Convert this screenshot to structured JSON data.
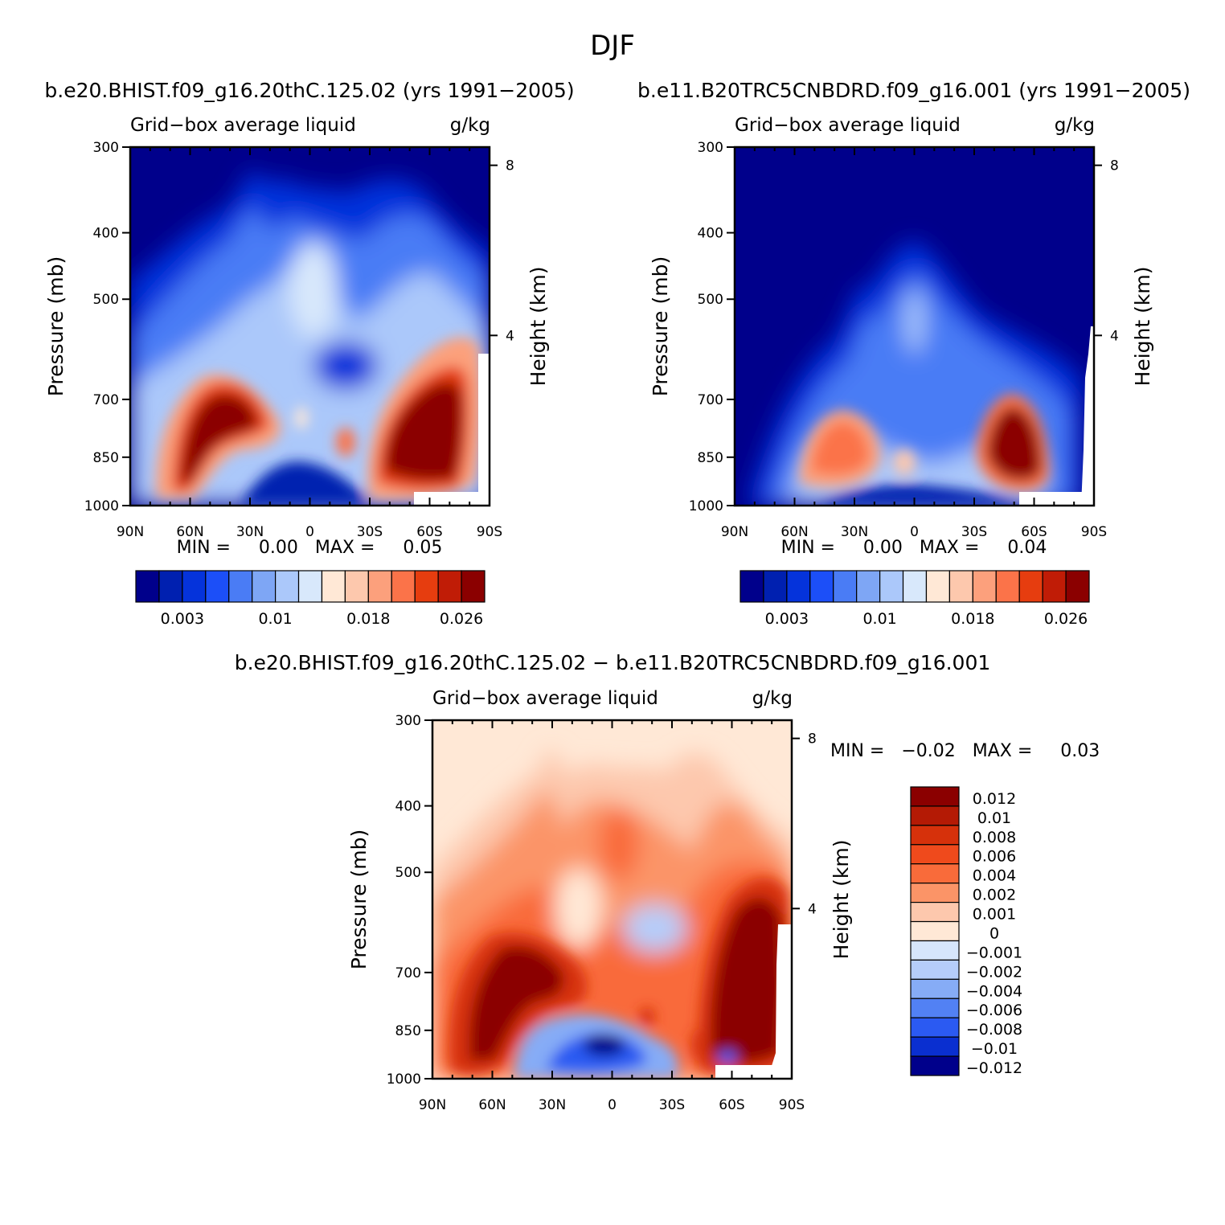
{
  "figure": {
    "title": "DJF"
  },
  "panels": [
    {
      "title": "b.e20.BHIST.f09_g16.20thC.125.02 (yrs 1991−2005)",
      "left_label": "Grid−box average liquid",
      "right_label": "g/kg",
      "min_max": "MIN =     0.00   MAX =     0.05"
    },
    {
      "title": "b.e11.B20TRC5CNBDRD.f09_g16.001 (yrs 1991−2005)",
      "left_label": "Grid−box average liquid",
      "right_label": "g/kg",
      "min_max": "MIN =     0.00   MAX =     0.04"
    },
    {
      "title": "b.e20.BHIST.f09_g16.20thC.125.02 − b.e11.B20TRC5CNBDRD.f09_g16.001",
      "left_label": "Grid−box average liquid",
      "right_label": "g/kg",
      "min_max": "MIN =   −0.02   MAX =     0.03"
    }
  ],
  "colorbars": {
    "field": {
      "labels": [
        "0.003",
        "0.01",
        "0.018",
        "0.026"
      ],
      "colors": [
        "#00008b",
        "#0020b0",
        "#0533db",
        "#1c4ff8",
        "#4a7cf5",
        "#7ea6f5",
        "#abc8fa",
        "#d8e8fb",
        "#ffe8d6",
        "#fdc8ad",
        "#fca07c",
        "#fb7349",
        "#e63d0f",
        "#c01c06",
        "#8b0000"
      ]
    },
    "diff": {
      "labels": [
        "0.012",
        "0.01",
        "0.008",
        "0.006",
        "0.004",
        "0.002",
        "0.001",
        "0",
        "−0.001",
        "−0.002",
        "−0.004",
        "−0.006",
        "−0.008",
        "−0.01",
        "−0.012"
      ],
      "colors": [
        "#8b0000",
        "#b41a05",
        "#d6310b",
        "#ef4a1c",
        "#f96b3a",
        "#fb9467",
        "#fdc8ad",
        "#ffe8d6",
        "#d6e6fb",
        "#b5cdfa",
        "#86acf6",
        "#5281f4",
        "#2b5af2",
        "#0a2fd0",
        "#00008b"
      ]
    }
  },
  "chart_data": [
    {
      "type": "heatmap",
      "title": "b.e20.BHIST.f09_g16.20thC.125.02 (yrs 1991−2005)",
      "variable": "Grid−box average liquid",
      "units": "g/kg",
      "xlabel": "",
      "ylabel": "Pressure (mb)",
      "y2label": "Height (km)",
      "x_ticks": [
        "90N",
        "60N",
        "30N",
        "0",
        "30S",
        "60S",
        "90S"
      ],
      "y_ticks": [
        300,
        400,
        500,
        700,
        850,
        1000
      ],
      "y2_ticks": [
        8,
        4
      ],
      "ylim": [
        1000,
        300
      ],
      "min": 0.0,
      "max": 0.05,
      "features": [
        "maximum ~0.03+ near 60N, 850 mb",
        "maximum ~0.03+ near 60S, 800-900 mb",
        "secondary minimum near equator ~700 mb"
      ]
    },
    {
      "type": "heatmap",
      "title": "b.e11.B20TRC5CNBDRD.f09_g16.001 (yrs 1991−2005)",
      "variable": "Grid−box average liquid",
      "units": "g/kg",
      "xlabel": "",
      "ylabel": "Pressure (mb)",
      "y2label": "Height (km)",
      "x_ticks": [
        "90N",
        "60N",
        "30N",
        "0",
        "30S",
        "60S",
        "90S"
      ],
      "y_ticks": [
        300,
        400,
        500,
        700,
        850,
        1000
      ],
      "y2_ticks": [
        8,
        4
      ],
      "ylim": [
        1000,
        300
      ],
      "min": 0.0,
      "max": 0.04,
      "features": [
        "maximum ~0.02 near 40N, 850 mb",
        "maximum ~0.03 near 50S, 850 mb"
      ]
    },
    {
      "type": "heatmap",
      "title": "b.e20.BHIST.f09_g16.20thC.125.02 − b.e11.B20TRC5CNBDRD.f09_g16.001",
      "variable": "Grid−box average liquid",
      "units": "g/kg",
      "xlabel": "",
      "ylabel": "Pressure (mb)",
      "y2label": "Height (km)",
      "x_ticks": [
        "90N",
        "60N",
        "30N",
        "0",
        "30S",
        "60S",
        "90S"
      ],
      "y_ticks": [
        300,
        400,
        500,
        700,
        850,
        1000
      ],
      "y2_ticks": [
        8,
        4
      ],
      "ylim": [
        1000,
        300
      ],
      "min": -0.02,
      "max": 0.03,
      "features": [
        "positive > 0.012 near 60N and 60-80S, 700-950 mb",
        "negative to −0.012 near 0-30N, 900-950 mb"
      ]
    }
  ]
}
